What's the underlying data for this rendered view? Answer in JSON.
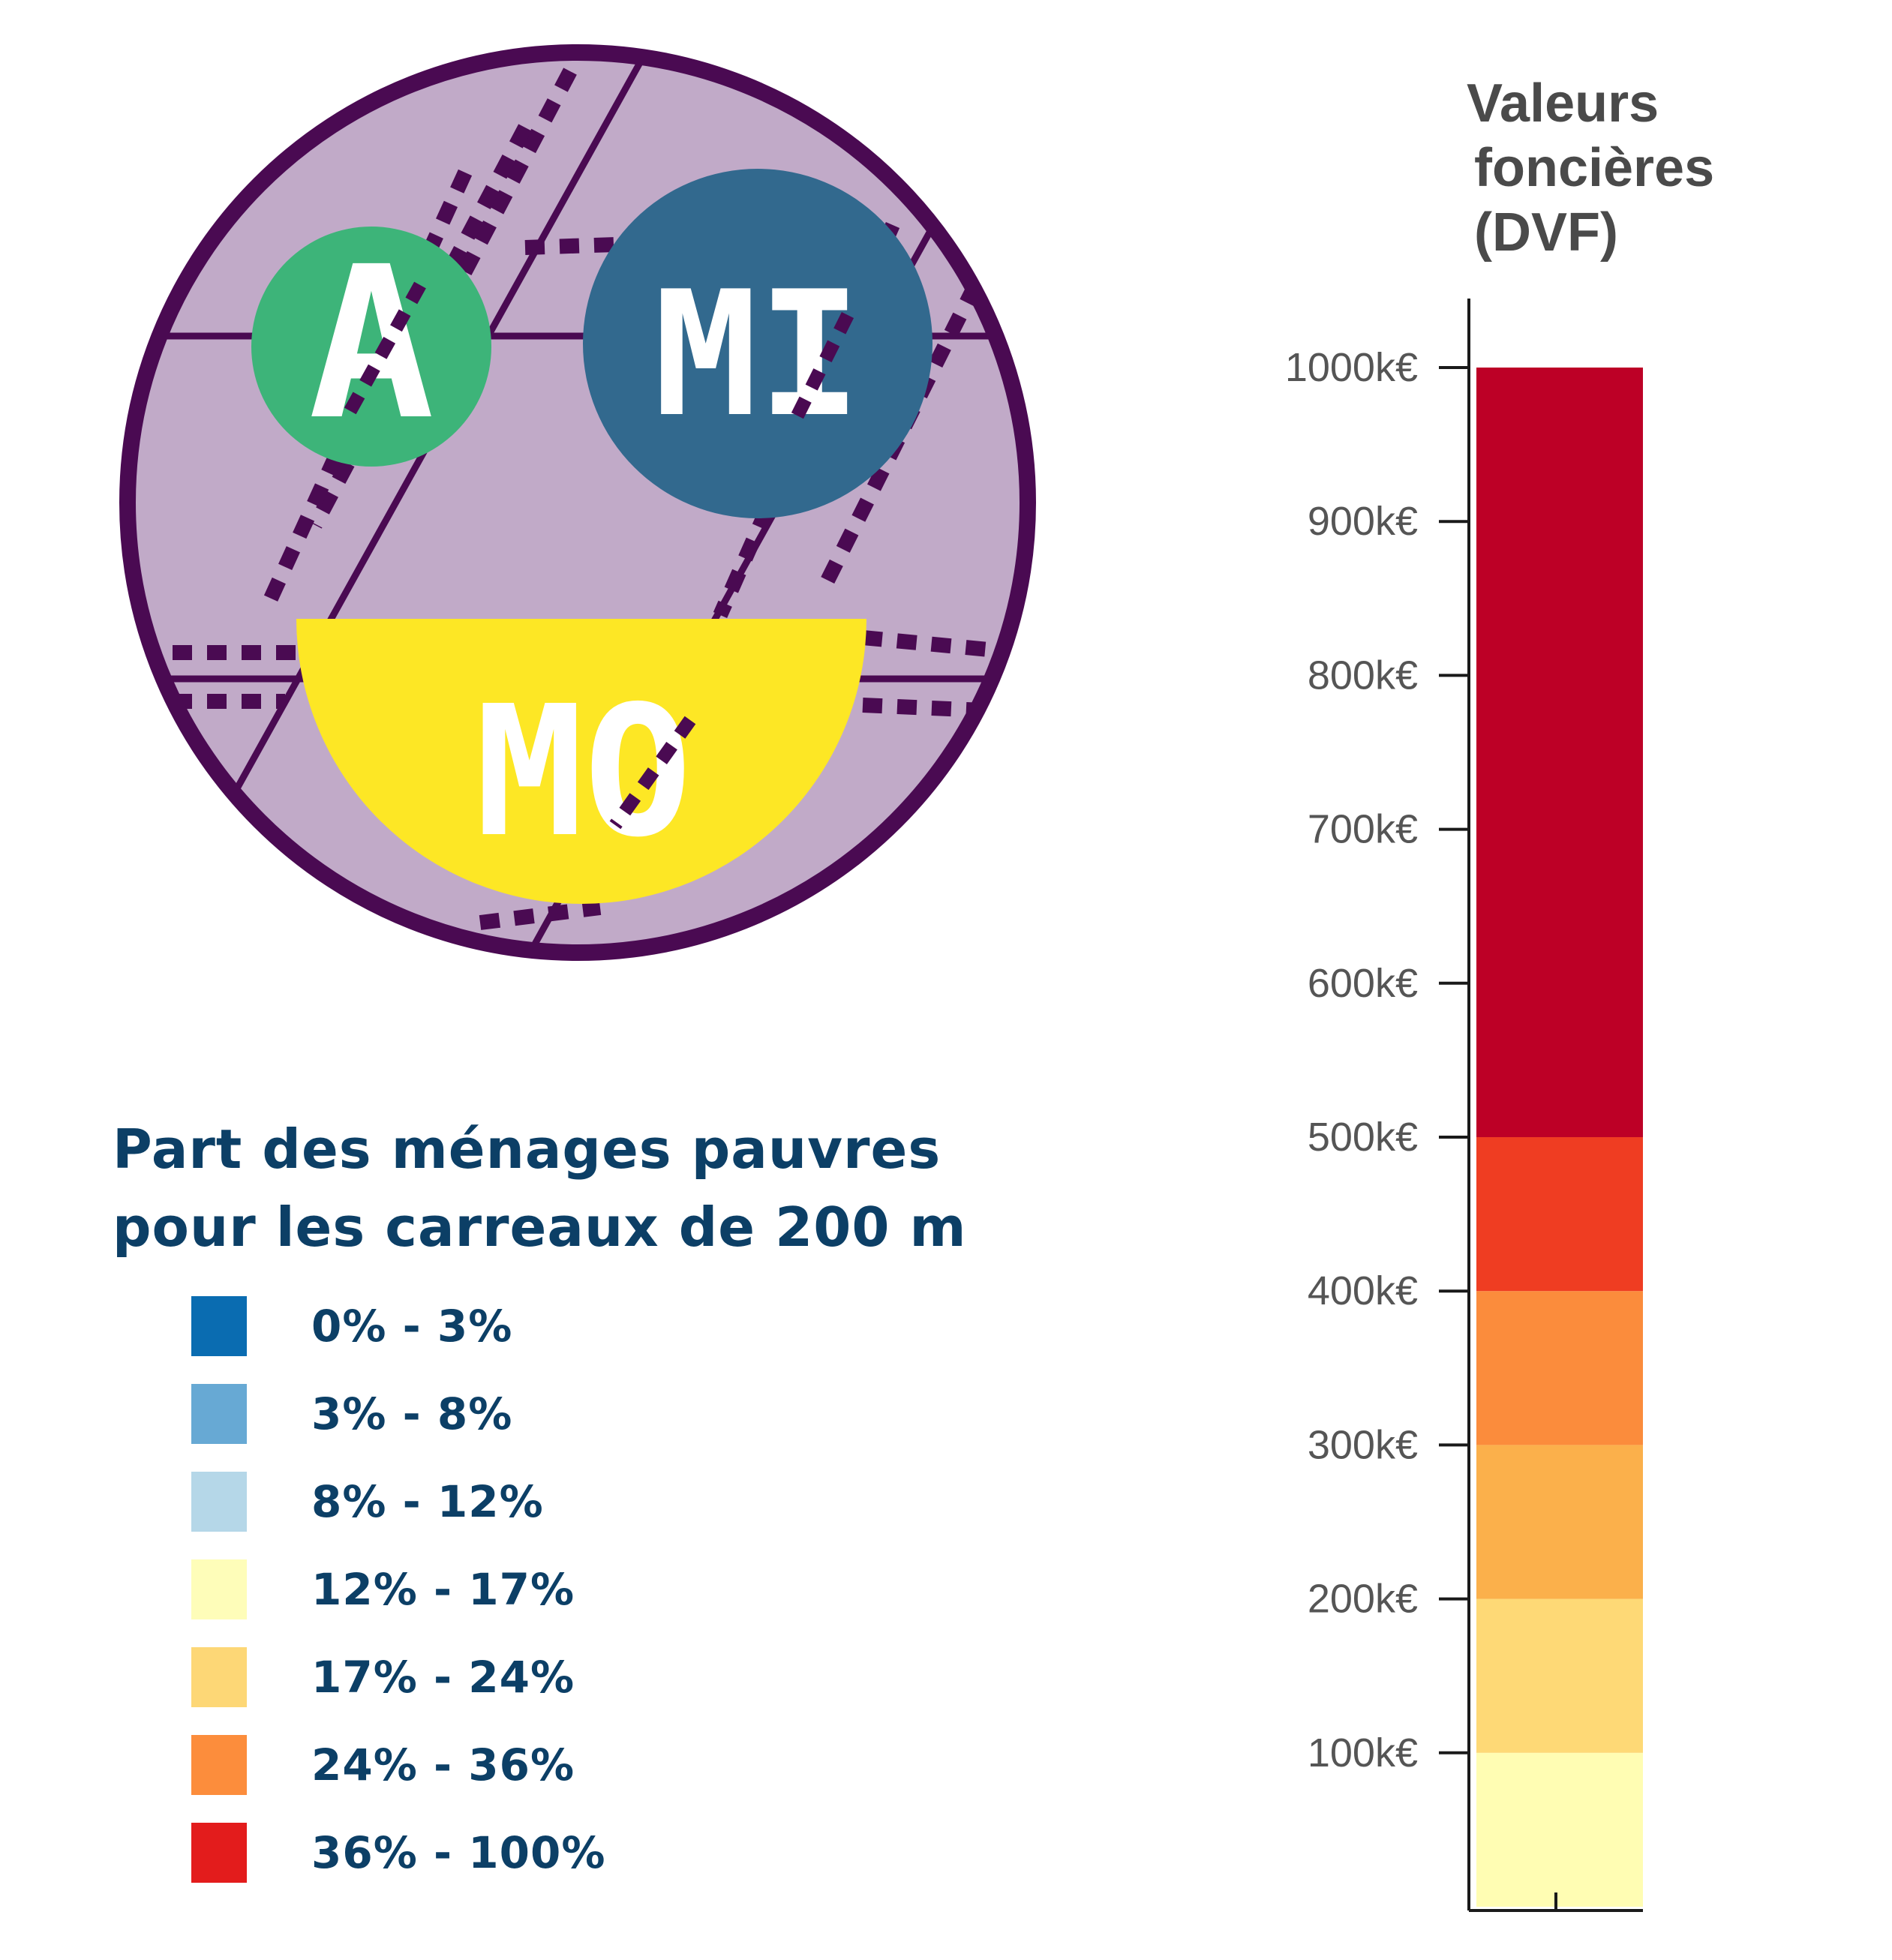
{
  "logo": {
    "letters_left": "A",
    "letters_right": "MI",
    "letters_bottom": "MO",
    "colors": {
      "outer_ring": "#4a0a52",
      "background": "#c1aac8",
      "green": "#3db479",
      "blue": "#32698e",
      "yellow": "#fde725",
      "letters": "#ffffff"
    }
  },
  "poverty_legend": {
    "title_line1": "Part des ménages pauvres",
    "title_line2": "pour les carreaux de 200 m",
    "items": [
      {
        "label": "0% - 3%",
        "color": "#0a6cb1"
      },
      {
        "label": "3% - 8%",
        "color": "#67a9d4"
      },
      {
        "label": "8% - 12%",
        "color": "#b5d7e8"
      },
      {
        "label": "12% - 17%",
        "color": "#fefdb9"
      },
      {
        "label": "17% - 24%",
        "color": "#fdd776"
      },
      {
        "label": "24% - 36%",
        "color": "#fc8d3c"
      },
      {
        "label": "36% - 100%",
        "color": "#e31c1c"
      }
    ]
  },
  "dvf_legend": {
    "title_lines": [
      "Valeurs",
      "foncières",
      "(DVF)"
    ],
    "ticks": [
      "100k€",
      "200k€",
      "300k€",
      "400k€",
      "500k€",
      "600k€",
      "700k€",
      "800k€",
      "900k€",
      "1000k€"
    ],
    "tick_values": [
      100,
      200,
      300,
      400,
      500,
      600,
      700,
      800,
      900,
      1000
    ],
    "bins": [
      {
        "from": 0,
        "to": 100,
        "color": "#fffdb3"
      },
      {
        "from": 100,
        "to": 200,
        "color": "#fed976"
      },
      {
        "from": 200,
        "to": 300,
        "color": "#fbb04b"
      },
      {
        "from": 300,
        "to": 400,
        "color": "#fb8c3c"
      },
      {
        "from": 400,
        "to": 500,
        "color": "#ef3d22"
      },
      {
        "from": 500,
        "to": 1000,
        "color": "#bd0026"
      }
    ],
    "range": [
      0,
      1000
    ]
  }
}
